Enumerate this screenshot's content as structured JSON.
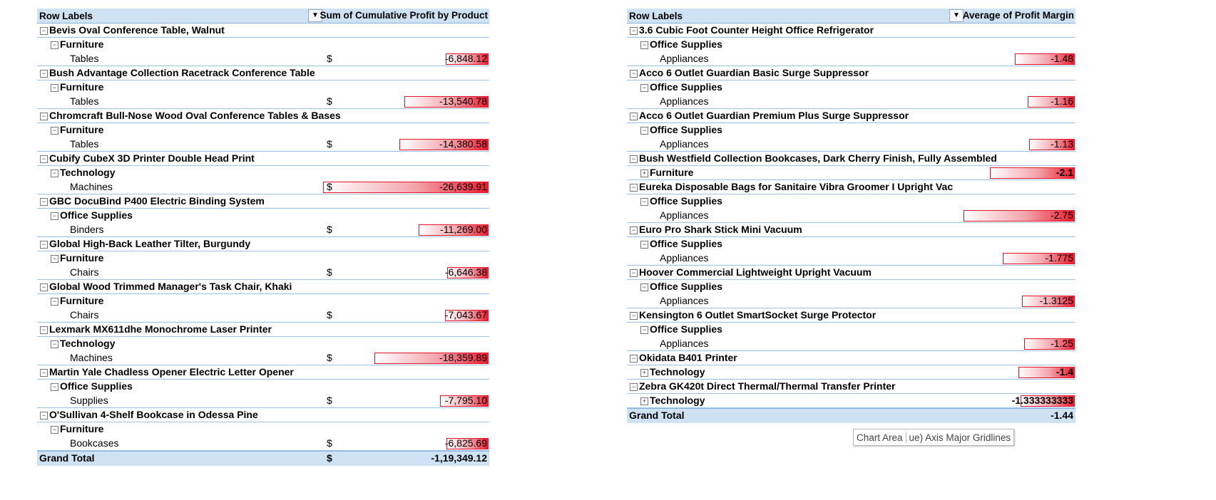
{
  "left_pivot": {
    "header_row_labels": "Row Labels",
    "header_value": "Sum of Cumulative Profit by Product",
    "filter_icon": "filter-dropdown-icon",
    "groups": [
      {
        "product": "Bevis Oval Conference Table, Walnut",
        "category": "Furniture",
        "sub": "Tables",
        "value": "-6,848.12",
        "magnitude": 6848.12
      },
      {
        "product": "Bush Advantage Collection Racetrack Conference Table",
        "category": "Furniture",
        "sub": "Tables",
        "value": "-13,540.78",
        "magnitude": 13540.78
      },
      {
        "product": "Chromcraft Bull-Nose Wood Oval Conference Tables & Bases",
        "category": "Furniture",
        "sub": "Tables",
        "value": "-14,380.58",
        "magnitude": 14380.58
      },
      {
        "product": "Cubify CubeX 3D Printer Double Head Print",
        "category": "Technology",
        "sub": "Machines",
        "value": "-26,639.91",
        "magnitude": 26639.91
      },
      {
        "product": "GBC DocuBind P400 Electric Binding System",
        "category": "Office Supplies",
        "sub": "Binders",
        "value": "-11,269.00",
        "magnitude": 11269.0
      },
      {
        "product": "Global High-Back Leather Tilter, Burgundy",
        "category": "Furniture",
        "sub": "Chairs",
        "value": "-6,646.38",
        "magnitude": 6646.38
      },
      {
        "product": "Global Wood Trimmed Manager's Task Chair, Khaki",
        "category": "Furniture",
        "sub": "Chairs",
        "value": "-7,043.67",
        "magnitude": 7043.67
      },
      {
        "product": "Lexmark MX611dhe Monochrome Laser Printer",
        "category": "Technology",
        "sub": "Machines",
        "value": "-18,359.89",
        "magnitude": 18359.89
      },
      {
        "product": "Martin Yale Chadless Opener Electric Letter Opener",
        "category": "Office Supplies",
        "sub": "Supplies",
        "value": "-7,795.10",
        "magnitude": 7795.1
      },
      {
        "product": "O'Sullivan 4-Shelf Bookcase in Odessa Pine",
        "category": "Furniture",
        "sub": "Bookcases",
        "value": "-6,825.69",
        "magnitude": 6825.69
      }
    ],
    "currency": "$",
    "grand_total_label": "Grand Total",
    "grand_total_value": "-1,19,349.12"
  },
  "right_pivot": {
    "header_row_labels": "Row Labels",
    "header_value": "Average of Profit Margin",
    "filter_icon": "filter-dropdown-icon",
    "groups": [
      {
        "product": "3.6 Cubic Foot Counter Height Office Refrigerator",
        "category": "Office Supplies",
        "sub": "Appliances",
        "value": "-1.48",
        "magnitude": 1.48
      },
      {
        "product": "Acco 6 Outlet Guardian Basic Surge Suppressor",
        "category": "Office Supplies",
        "sub": "Appliances",
        "value": "-1.16",
        "magnitude": 1.16
      },
      {
        "product": "Acco 6 Outlet Guardian Premium Plus Surge Suppressor",
        "category": "Office Supplies",
        "sub": "Appliances",
        "value": "-1.13",
        "magnitude": 1.13
      },
      {
        "product": "Bush Westfield Collection Bookcases, Dark Cherry Finish, Fully Assembled",
        "category": "Furniture",
        "collapsed": true,
        "value": "-2.1",
        "magnitude": 2.1
      },
      {
        "product": "Eureka Disposable Bags for Sanitaire Vibra Groomer I Upright Vac",
        "category": "Office Supplies",
        "sub": "Appliances",
        "value": "-2.75",
        "magnitude": 2.75
      },
      {
        "product": "Euro Pro Shark Stick Mini Vacuum",
        "category": "Office Supplies",
        "sub": "Appliances",
        "value": "-1.775",
        "magnitude": 1.775
      },
      {
        "product": "Hoover Commercial Lightweight Upright Vacuum",
        "category": "Office Supplies",
        "sub": "Appliances",
        "value": "-1.3125",
        "magnitude": 1.3125
      },
      {
        "product": "Kensington 6 Outlet SmartSocket Surge Protector",
        "category": "Office Supplies",
        "sub": "Appliances",
        "value": "-1.25",
        "magnitude": 1.25
      },
      {
        "product": "Okidata B401 Printer",
        "category": "Technology",
        "collapsed": true,
        "value": "-1.4",
        "magnitude": 1.4
      },
      {
        "product": "Zebra GK420t Direct Thermal/Thermal Transfer Printer",
        "category": "Technology",
        "collapsed": true,
        "value": "-1.333333333",
        "magnitude": 1.333333333
      }
    ],
    "grand_total_label": "Grand Total",
    "grand_total_value": "-1.44"
  },
  "tooltip": {
    "part1": "Chart Area",
    "part2": "ue) Axis Major Gridlines"
  },
  "colors": {
    "header_bg": "#cfe2f3",
    "databar_red": "#ee1c2e",
    "row_border": "#9dc3e6"
  }
}
